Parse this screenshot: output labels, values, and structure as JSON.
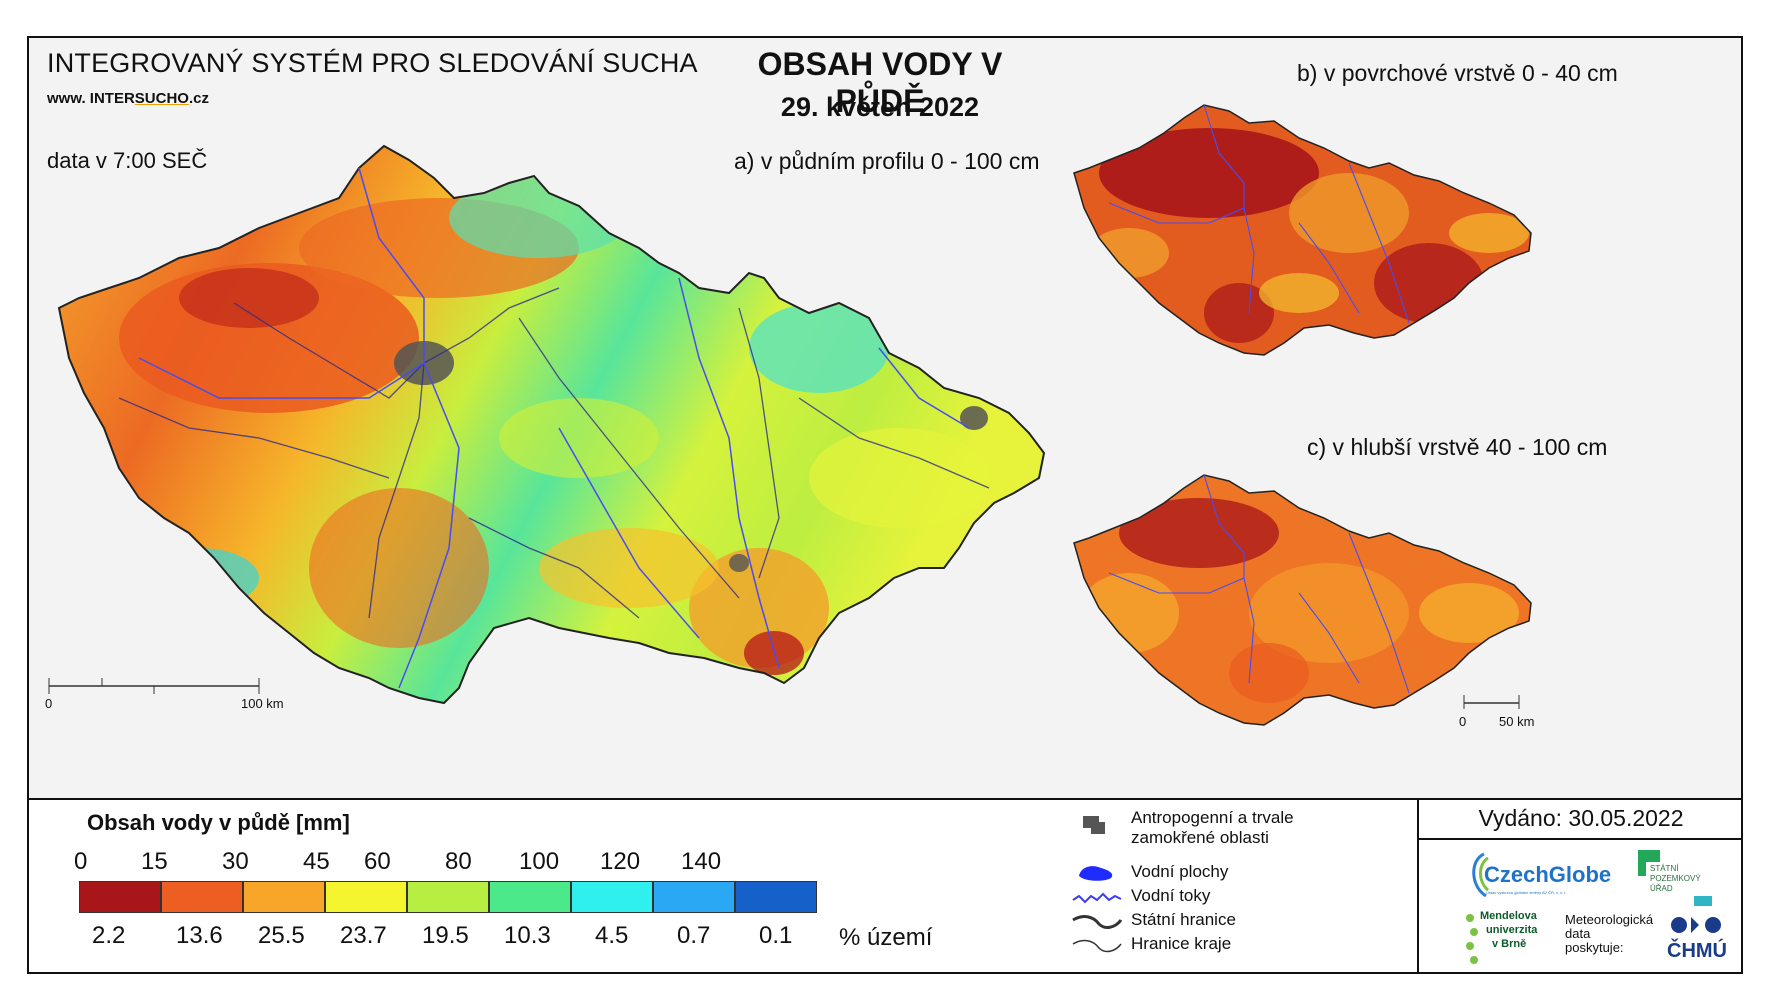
{
  "header": {
    "system_title": "INTEGROVANÝ SYSTÉM PRO SLEDOVÁNÍ SUCHA",
    "website_prefix": "www. INTER",
    "website_brand": "SUCHO",
    "website_suffix": ".cz",
    "data_time": "data v 7:00 SEČ",
    "main_title": "OBSAH VODY V PŮDĚ",
    "date": "29. květen 2022",
    "subtitle_a": "a) v půdním profilu 0 - 100 cm",
    "subtitle_b": "b) v povrchové vrstvě 0 - 40 cm",
    "subtitle_c": "c) v hlubší vrstvě 40 - 100 cm"
  },
  "scale_main": {
    "zero": "0",
    "end": "100 km"
  },
  "scale_small": {
    "zero": "0",
    "end": "50 km"
  },
  "legend": {
    "title": "Obsah vody v půdě  [mm]",
    "ticks": [
      "0",
      "15",
      "30",
      "45",
      "60",
      "80",
      "100",
      "120",
      "140"
    ],
    "classes": [
      {
        "color": "#a8161a",
        "percent": "2.2"
      },
      {
        "color": "#ec5e22",
        "percent": "13.6"
      },
      {
        "color": "#f8a62a",
        "percent": "25.5"
      },
      {
        "color": "#f4f52f",
        "percent": "23.7"
      },
      {
        "color": "#b7ee42",
        "percent": "19.5"
      },
      {
        "color": "#4ce98a",
        "percent": "10.3"
      },
      {
        "color": "#30f0ee",
        "percent": "4.5"
      },
      {
        "color": "#2aa8f4",
        "percent": "0.7"
      },
      {
        "color": "#1561c9",
        "percent": "0.1"
      }
    ],
    "percent_unit": "% území"
  },
  "map_legend": {
    "anthropogenic": "Antropogenní a trvale zamokřené oblasti",
    "water_bodies": "Vodní plochy",
    "rivers": "Vodní toky",
    "state_border": "Státní hranice",
    "region_border": "Hranice kraje"
  },
  "issued": "Vydáno: 30.05.2022",
  "logos": {
    "czechglobe": "CzechGlobe",
    "czechglobe_sub": "Ústav výzkumu globální změny AV ČR, v. v. i.",
    "spu_line1": "STÁTNÍ",
    "spu_line2": "POZEMKOVÝ",
    "spu_line3": "ÚŘAD",
    "mendel_line1": "Mendelova",
    "mendel_line2": "univerzita",
    "mendel_line3": "v Brně",
    "chmu_text1": "Meteorologická",
    "chmu_text2": "data",
    "chmu_text3": "poskytuje:",
    "chmu": "ČHMÚ"
  }
}
